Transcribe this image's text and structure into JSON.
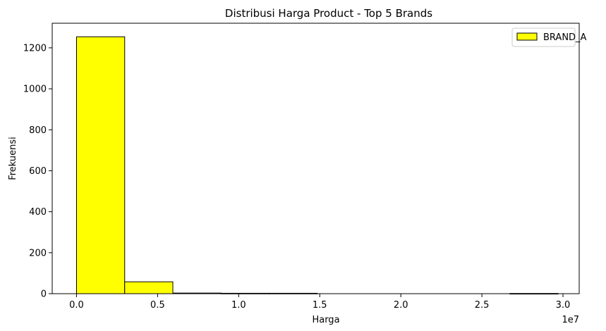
{
  "chart_data": {
    "type": "bar",
    "title": "Distribusi Harga Product - Top 5 Brands",
    "xlabel": "Harga",
    "ylabel": "Frekuensi",
    "x_offset_text": "1e7",
    "x_scale": 10000000,
    "xlim": [
      -1500000,
      31000000
    ],
    "ylim": [
      0,
      1320
    ],
    "x_ticks": [
      0,
      5000000,
      10000000,
      15000000,
      20000000,
      25000000,
      30000000
    ],
    "x_tick_labels": [
      "0.0",
      "0.5",
      "1.0",
      "1.5",
      "2.0",
      "2.5",
      "3.0"
    ],
    "y_ticks": [
      0,
      200,
      400,
      600,
      800,
      1000,
      1200
    ],
    "y_tick_labels": [
      "0",
      "200",
      "400",
      "600",
      "800",
      "1000",
      "1200"
    ],
    "grid": false,
    "legend_position": "top-right",
    "series": [
      {
        "name": "BRAND_A",
        "color": "#ffff00",
        "edge_color": "#000000",
        "bins": [
          {
            "x0": 0,
            "x1": 2970000,
            "value": 1254
          },
          {
            "x0": 2970000,
            "x1": 5940000,
            "value": 58
          },
          {
            "x0": 5940000,
            "x1": 8910000,
            "value": 3
          },
          {
            "x0": 8910000,
            "x1": 11880000,
            "value": 2
          },
          {
            "x0": 11880000,
            "x1": 14850000,
            "value": 2
          },
          {
            "x0": 14850000,
            "x1": 17820000,
            "value": 0
          },
          {
            "x0": 17820000,
            "x1": 20790000,
            "value": 0
          },
          {
            "x0": 20790000,
            "x1": 23760000,
            "value": 0
          },
          {
            "x0": 23760000,
            "x1": 26730000,
            "value": 0
          },
          {
            "x0": 26730000,
            "x1": 29700000,
            "value": 1
          }
        ]
      }
    ]
  }
}
